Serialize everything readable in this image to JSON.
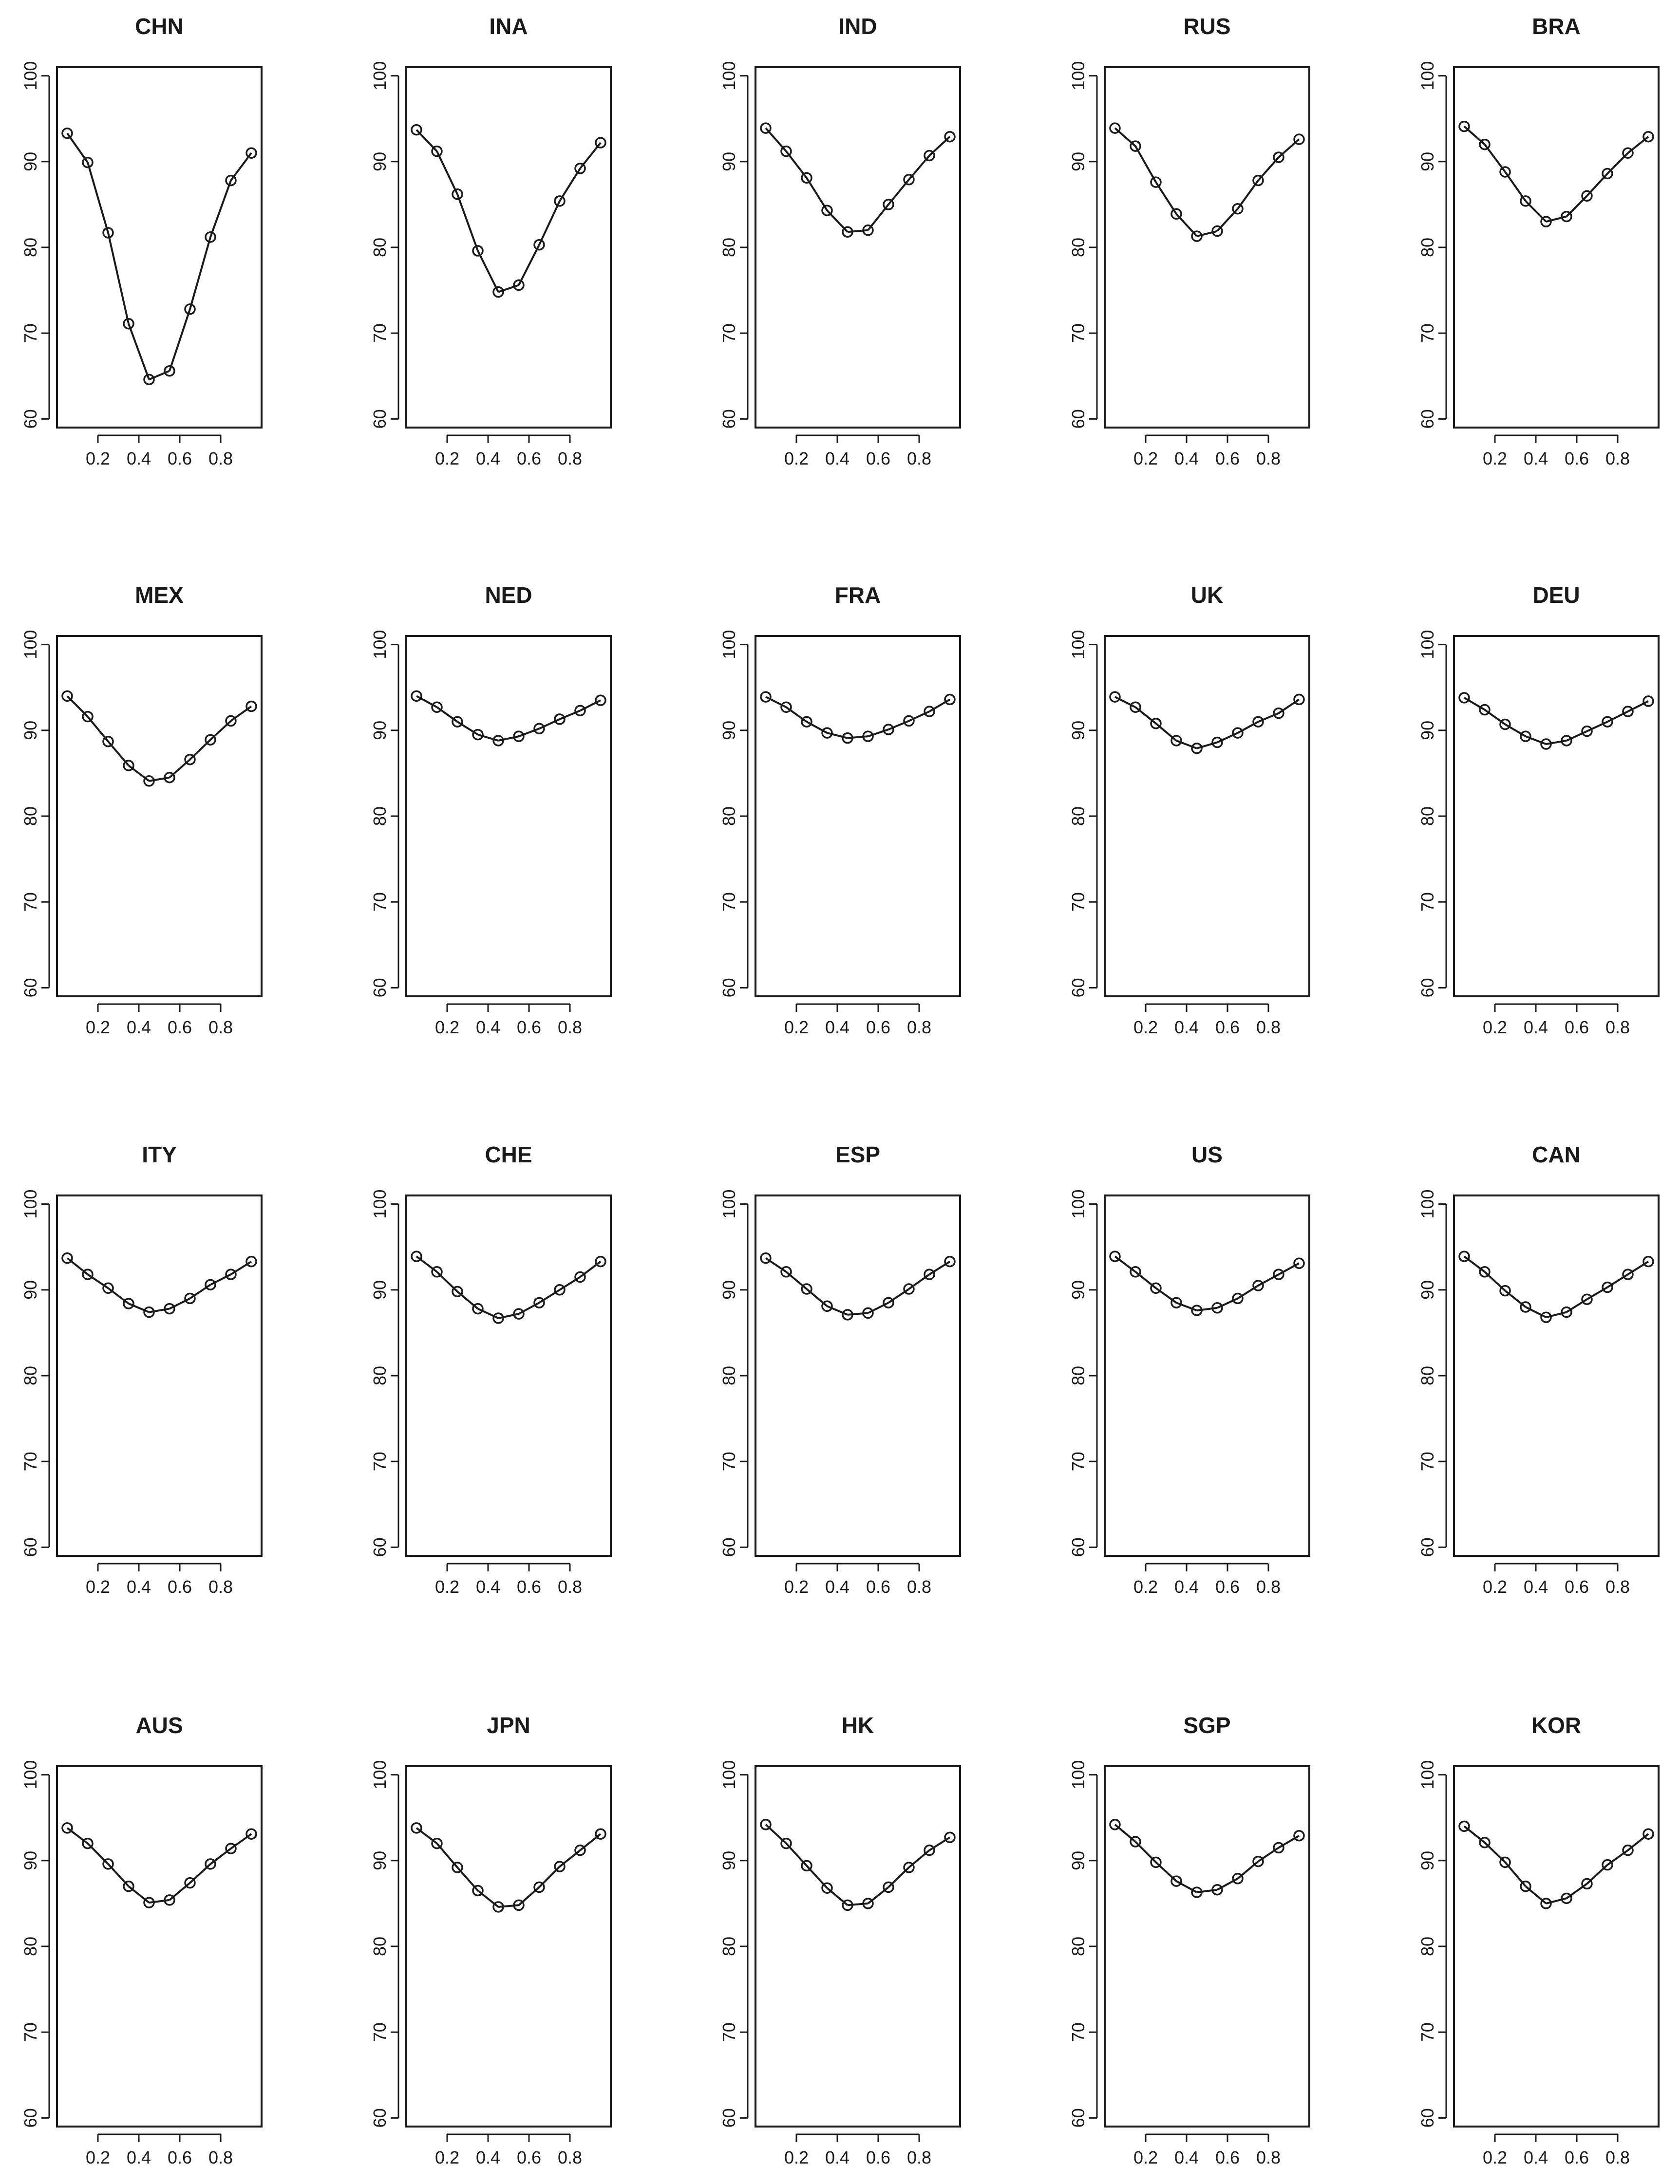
{
  "chart_data": [
    {
      "type": "line",
      "title": "CHN",
      "x": [
        0.05,
        0.15,
        0.25,
        0.35,
        0.45,
        0.55,
        0.65,
        0.75,
        0.85,
        0.95
      ],
      "values": [
        93.3,
        89.9,
        81.7,
        71.1,
        64.6,
        65.6,
        72.8,
        81.2,
        87.8,
        91.0
      ],
      "xticks": [
        "0.2",
        "0.4",
        "0.6",
        "0.8"
      ],
      "yticks": [
        "60",
        "70",
        "80",
        "90",
        "100"
      ],
      "xlim": [
        0,
        1
      ],
      "ylim": [
        59,
        101
      ]
    },
    {
      "type": "line",
      "title": "INA",
      "x": [
        0.05,
        0.15,
        0.25,
        0.35,
        0.45,
        0.55,
        0.65,
        0.75,
        0.85,
        0.95
      ],
      "values": [
        93.7,
        91.2,
        86.2,
        79.6,
        74.8,
        75.6,
        80.3,
        85.4,
        89.2,
        92.2
      ],
      "xticks": [
        "0.2",
        "0.4",
        "0.6",
        "0.8"
      ],
      "yticks": [
        "60",
        "70",
        "80",
        "90",
        "100"
      ],
      "xlim": [
        0,
        1
      ],
      "ylim": [
        59,
        101
      ]
    },
    {
      "type": "line",
      "title": "IND",
      "x": [
        0.05,
        0.15,
        0.25,
        0.35,
        0.45,
        0.55,
        0.65,
        0.75,
        0.85,
        0.95
      ],
      "values": [
        93.9,
        91.2,
        88.1,
        84.3,
        81.8,
        82.0,
        85.0,
        87.9,
        90.7,
        92.9
      ],
      "xticks": [
        "0.2",
        "0.4",
        "0.6",
        "0.8"
      ],
      "yticks": [
        "60",
        "70",
        "80",
        "90",
        "100"
      ],
      "xlim": [
        0,
        1
      ],
      "ylim": [
        59,
        101
      ]
    },
    {
      "type": "line",
      "title": "RUS",
      "x": [
        0.05,
        0.15,
        0.25,
        0.35,
        0.45,
        0.55,
        0.65,
        0.75,
        0.85,
        0.95
      ],
      "values": [
        93.9,
        91.8,
        87.6,
        83.9,
        81.3,
        81.9,
        84.5,
        87.8,
        90.5,
        92.6
      ],
      "xticks": [
        "0.2",
        "0.4",
        "0.6",
        "0.8"
      ],
      "yticks": [
        "60",
        "70",
        "80",
        "90",
        "100"
      ],
      "xlim": [
        0,
        1
      ],
      "ylim": [
        59,
        101
      ]
    },
    {
      "type": "line",
      "title": "BRA",
      "x": [
        0.05,
        0.15,
        0.25,
        0.35,
        0.45,
        0.55,
        0.65,
        0.75,
        0.85,
        0.95
      ],
      "values": [
        94.1,
        92.0,
        88.8,
        85.4,
        83.0,
        83.6,
        86.0,
        88.6,
        91.0,
        92.9
      ],
      "xticks": [
        "0.2",
        "0.4",
        "0.6",
        "0.8"
      ],
      "yticks": [
        "60",
        "70",
        "80",
        "90",
        "100"
      ],
      "xlim": [
        0,
        1
      ],
      "ylim": [
        59,
        101
      ]
    },
    {
      "type": "line",
      "title": "MEX",
      "x": [
        0.05,
        0.15,
        0.25,
        0.35,
        0.45,
        0.55,
        0.65,
        0.75,
        0.85,
        0.95
      ],
      "values": [
        94.0,
        91.6,
        88.7,
        85.9,
        84.1,
        84.5,
        86.6,
        88.9,
        91.1,
        92.8
      ],
      "xticks": [
        "0.2",
        "0.4",
        "0.6",
        "0.8"
      ],
      "yticks": [
        "60",
        "70",
        "80",
        "90",
        "100"
      ],
      "xlim": [
        0,
        1
      ],
      "ylim": [
        59,
        101
      ]
    },
    {
      "type": "line",
      "title": "NED",
      "x": [
        0.05,
        0.15,
        0.25,
        0.35,
        0.45,
        0.55,
        0.65,
        0.75,
        0.85,
        0.95
      ],
      "values": [
        94.0,
        92.7,
        91.0,
        89.5,
        88.8,
        89.3,
        90.2,
        91.3,
        92.3,
        93.5
      ],
      "xticks": [
        "0.2",
        "0.4",
        "0.6",
        "0.8"
      ],
      "yticks": [
        "60",
        "70",
        "80",
        "90",
        "100"
      ],
      "xlim": [
        0,
        1
      ],
      "ylim": [
        59,
        101
      ]
    },
    {
      "type": "line",
      "title": "FRA",
      "x": [
        0.05,
        0.15,
        0.25,
        0.35,
        0.45,
        0.55,
        0.65,
        0.75,
        0.85,
        0.95
      ],
      "values": [
        93.9,
        92.7,
        91.0,
        89.7,
        89.1,
        89.3,
        90.1,
        91.1,
        92.2,
        93.6
      ],
      "xticks": [
        "0.2",
        "0.4",
        "0.6",
        "0.8"
      ],
      "yticks": [
        "60",
        "70",
        "80",
        "90",
        "100"
      ],
      "xlim": [
        0,
        1
      ],
      "ylim": [
        59,
        101
      ]
    },
    {
      "type": "line",
      "title": "UK",
      "x": [
        0.05,
        0.15,
        0.25,
        0.35,
        0.45,
        0.55,
        0.65,
        0.75,
        0.85,
        0.95
      ],
      "values": [
        93.9,
        92.7,
        90.8,
        88.8,
        87.9,
        88.6,
        89.7,
        91.0,
        92.0,
        93.6
      ],
      "xticks": [
        "0.2",
        "0.4",
        "0.6",
        "0.8"
      ],
      "yticks": [
        "60",
        "70",
        "80",
        "90",
        "100"
      ],
      "xlim": [
        0,
        1
      ],
      "ylim": [
        59,
        101
      ]
    },
    {
      "type": "line",
      "title": "DEU",
      "x": [
        0.05,
        0.15,
        0.25,
        0.35,
        0.45,
        0.55,
        0.65,
        0.75,
        0.85,
        0.95
      ],
      "values": [
        93.8,
        92.4,
        90.7,
        89.3,
        88.4,
        88.8,
        89.9,
        91.0,
        92.2,
        93.4
      ],
      "xticks": [
        "0.2",
        "0.4",
        "0.6",
        "0.8"
      ],
      "yticks": [
        "60",
        "70",
        "80",
        "90",
        "100"
      ],
      "xlim": [
        0,
        1
      ],
      "ylim": [
        59,
        101
      ]
    },
    {
      "type": "line",
      "title": "ITY",
      "x": [
        0.05,
        0.15,
        0.25,
        0.35,
        0.45,
        0.55,
        0.65,
        0.75,
        0.85,
        0.95
      ],
      "values": [
        93.7,
        91.8,
        90.2,
        88.4,
        87.4,
        87.8,
        89.0,
        90.6,
        91.8,
        93.3
      ],
      "xticks": [
        "0.2",
        "0.4",
        "0.6",
        "0.8"
      ],
      "yticks": [
        "60",
        "70",
        "80",
        "90",
        "100"
      ],
      "xlim": [
        0,
        1
      ],
      "ylim": [
        59,
        101
      ]
    },
    {
      "type": "line",
      "title": "CHE",
      "x": [
        0.05,
        0.15,
        0.25,
        0.35,
        0.45,
        0.55,
        0.65,
        0.75,
        0.85,
        0.95
      ],
      "values": [
        93.9,
        92.1,
        89.8,
        87.8,
        86.7,
        87.2,
        88.5,
        90.0,
        91.5,
        93.3
      ],
      "xticks": [
        "0.2",
        "0.4",
        "0.6",
        "0.8"
      ],
      "yticks": [
        "60",
        "70",
        "80",
        "90",
        "100"
      ],
      "xlim": [
        0,
        1
      ],
      "ylim": [
        59,
        101
      ]
    },
    {
      "type": "line",
      "title": "ESP",
      "x": [
        0.05,
        0.15,
        0.25,
        0.35,
        0.45,
        0.55,
        0.65,
        0.75,
        0.85,
        0.95
      ],
      "values": [
        93.7,
        92.1,
        90.1,
        88.1,
        87.1,
        87.3,
        88.5,
        90.1,
        91.8,
        93.3
      ],
      "xticks": [
        "0.2",
        "0.4",
        "0.6",
        "0.8"
      ],
      "yticks": [
        "60",
        "70",
        "80",
        "90",
        "100"
      ],
      "xlim": [
        0,
        1
      ],
      "ylim": [
        59,
        101
      ]
    },
    {
      "type": "line",
      "title": "US",
      "x": [
        0.05,
        0.15,
        0.25,
        0.35,
        0.45,
        0.55,
        0.65,
        0.75,
        0.85,
        0.95
      ],
      "values": [
        93.9,
        92.1,
        90.2,
        88.5,
        87.6,
        87.9,
        89.0,
        90.5,
        91.8,
        93.1
      ],
      "xticks": [
        "0.2",
        "0.4",
        "0.6",
        "0.8"
      ],
      "yticks": [
        "60",
        "70",
        "80",
        "90",
        "100"
      ],
      "xlim": [
        0,
        1
      ],
      "ylim": [
        59,
        101
      ]
    },
    {
      "type": "line",
      "title": "CAN",
      "x": [
        0.05,
        0.15,
        0.25,
        0.35,
        0.45,
        0.55,
        0.65,
        0.75,
        0.85,
        0.95
      ],
      "values": [
        93.9,
        92.1,
        89.9,
        88.0,
        86.8,
        87.4,
        88.9,
        90.3,
        91.8,
        93.3
      ],
      "xticks": [
        "0.2",
        "0.4",
        "0.6",
        "0.8"
      ],
      "yticks": [
        "60",
        "70",
        "80",
        "90",
        "100"
      ],
      "xlim": [
        0,
        1
      ],
      "ylim": [
        59,
        101
      ]
    },
    {
      "type": "line",
      "title": "AUS",
      "x": [
        0.05,
        0.15,
        0.25,
        0.35,
        0.45,
        0.55,
        0.65,
        0.75,
        0.85,
        0.95
      ],
      "values": [
        93.8,
        92.0,
        89.6,
        87.0,
        85.1,
        85.4,
        87.4,
        89.6,
        91.4,
        93.1
      ],
      "xticks": [
        "0.2",
        "0.4",
        "0.6",
        "0.8"
      ],
      "yticks": [
        "60",
        "70",
        "80",
        "90",
        "100"
      ],
      "xlim": [
        0,
        1
      ],
      "ylim": [
        59,
        101
      ]
    },
    {
      "type": "line",
      "title": "JPN",
      "x": [
        0.05,
        0.15,
        0.25,
        0.35,
        0.45,
        0.55,
        0.65,
        0.75,
        0.85,
        0.95
      ],
      "values": [
        93.8,
        92.0,
        89.2,
        86.5,
        84.6,
        84.8,
        86.9,
        89.3,
        91.2,
        93.1
      ],
      "xticks": [
        "0.2",
        "0.4",
        "0.6",
        "0.8"
      ],
      "yticks": [
        "60",
        "70",
        "80",
        "90",
        "100"
      ],
      "xlim": [
        0,
        1
      ],
      "ylim": [
        59,
        101
      ]
    },
    {
      "type": "line",
      "title": "HK",
      "x": [
        0.05,
        0.15,
        0.25,
        0.35,
        0.45,
        0.55,
        0.65,
        0.75,
        0.85,
        0.95
      ],
      "values": [
        94.2,
        92.0,
        89.4,
        86.8,
        84.8,
        85.0,
        86.9,
        89.2,
        91.2,
        92.7
      ],
      "xticks": [
        "0.2",
        "0.4",
        "0.6",
        "0.8"
      ],
      "yticks": [
        "60",
        "70",
        "80",
        "90",
        "100"
      ],
      "xlim": [
        0,
        1
      ],
      "ylim": [
        59,
        101
      ]
    },
    {
      "type": "line",
      "title": "SGP",
      "x": [
        0.05,
        0.15,
        0.25,
        0.35,
        0.45,
        0.55,
        0.65,
        0.75,
        0.85,
        0.95
      ],
      "values": [
        94.2,
        92.2,
        89.8,
        87.6,
        86.3,
        86.6,
        87.9,
        89.9,
        91.5,
        92.9
      ],
      "xticks": [
        "0.2",
        "0.4",
        "0.6",
        "0.8"
      ],
      "yticks": [
        "60",
        "70",
        "80",
        "90",
        "100"
      ],
      "xlim": [
        0,
        1
      ],
      "ylim": [
        59,
        101
      ]
    },
    {
      "type": "line",
      "title": "KOR",
      "x": [
        0.05,
        0.15,
        0.25,
        0.35,
        0.45,
        0.55,
        0.65,
        0.75,
        0.85,
        0.95
      ],
      "values": [
        94.0,
        92.1,
        89.8,
        87.0,
        85.0,
        85.6,
        87.3,
        89.5,
        91.2,
        93.1
      ],
      "xticks": [
        "0.2",
        "0.4",
        "0.6",
        "0.8"
      ],
      "yticks": [
        "60",
        "70",
        "80",
        "90",
        "100"
      ],
      "xlim": [
        0,
        1
      ],
      "ylim": [
        59,
        101
      ]
    }
  ]
}
